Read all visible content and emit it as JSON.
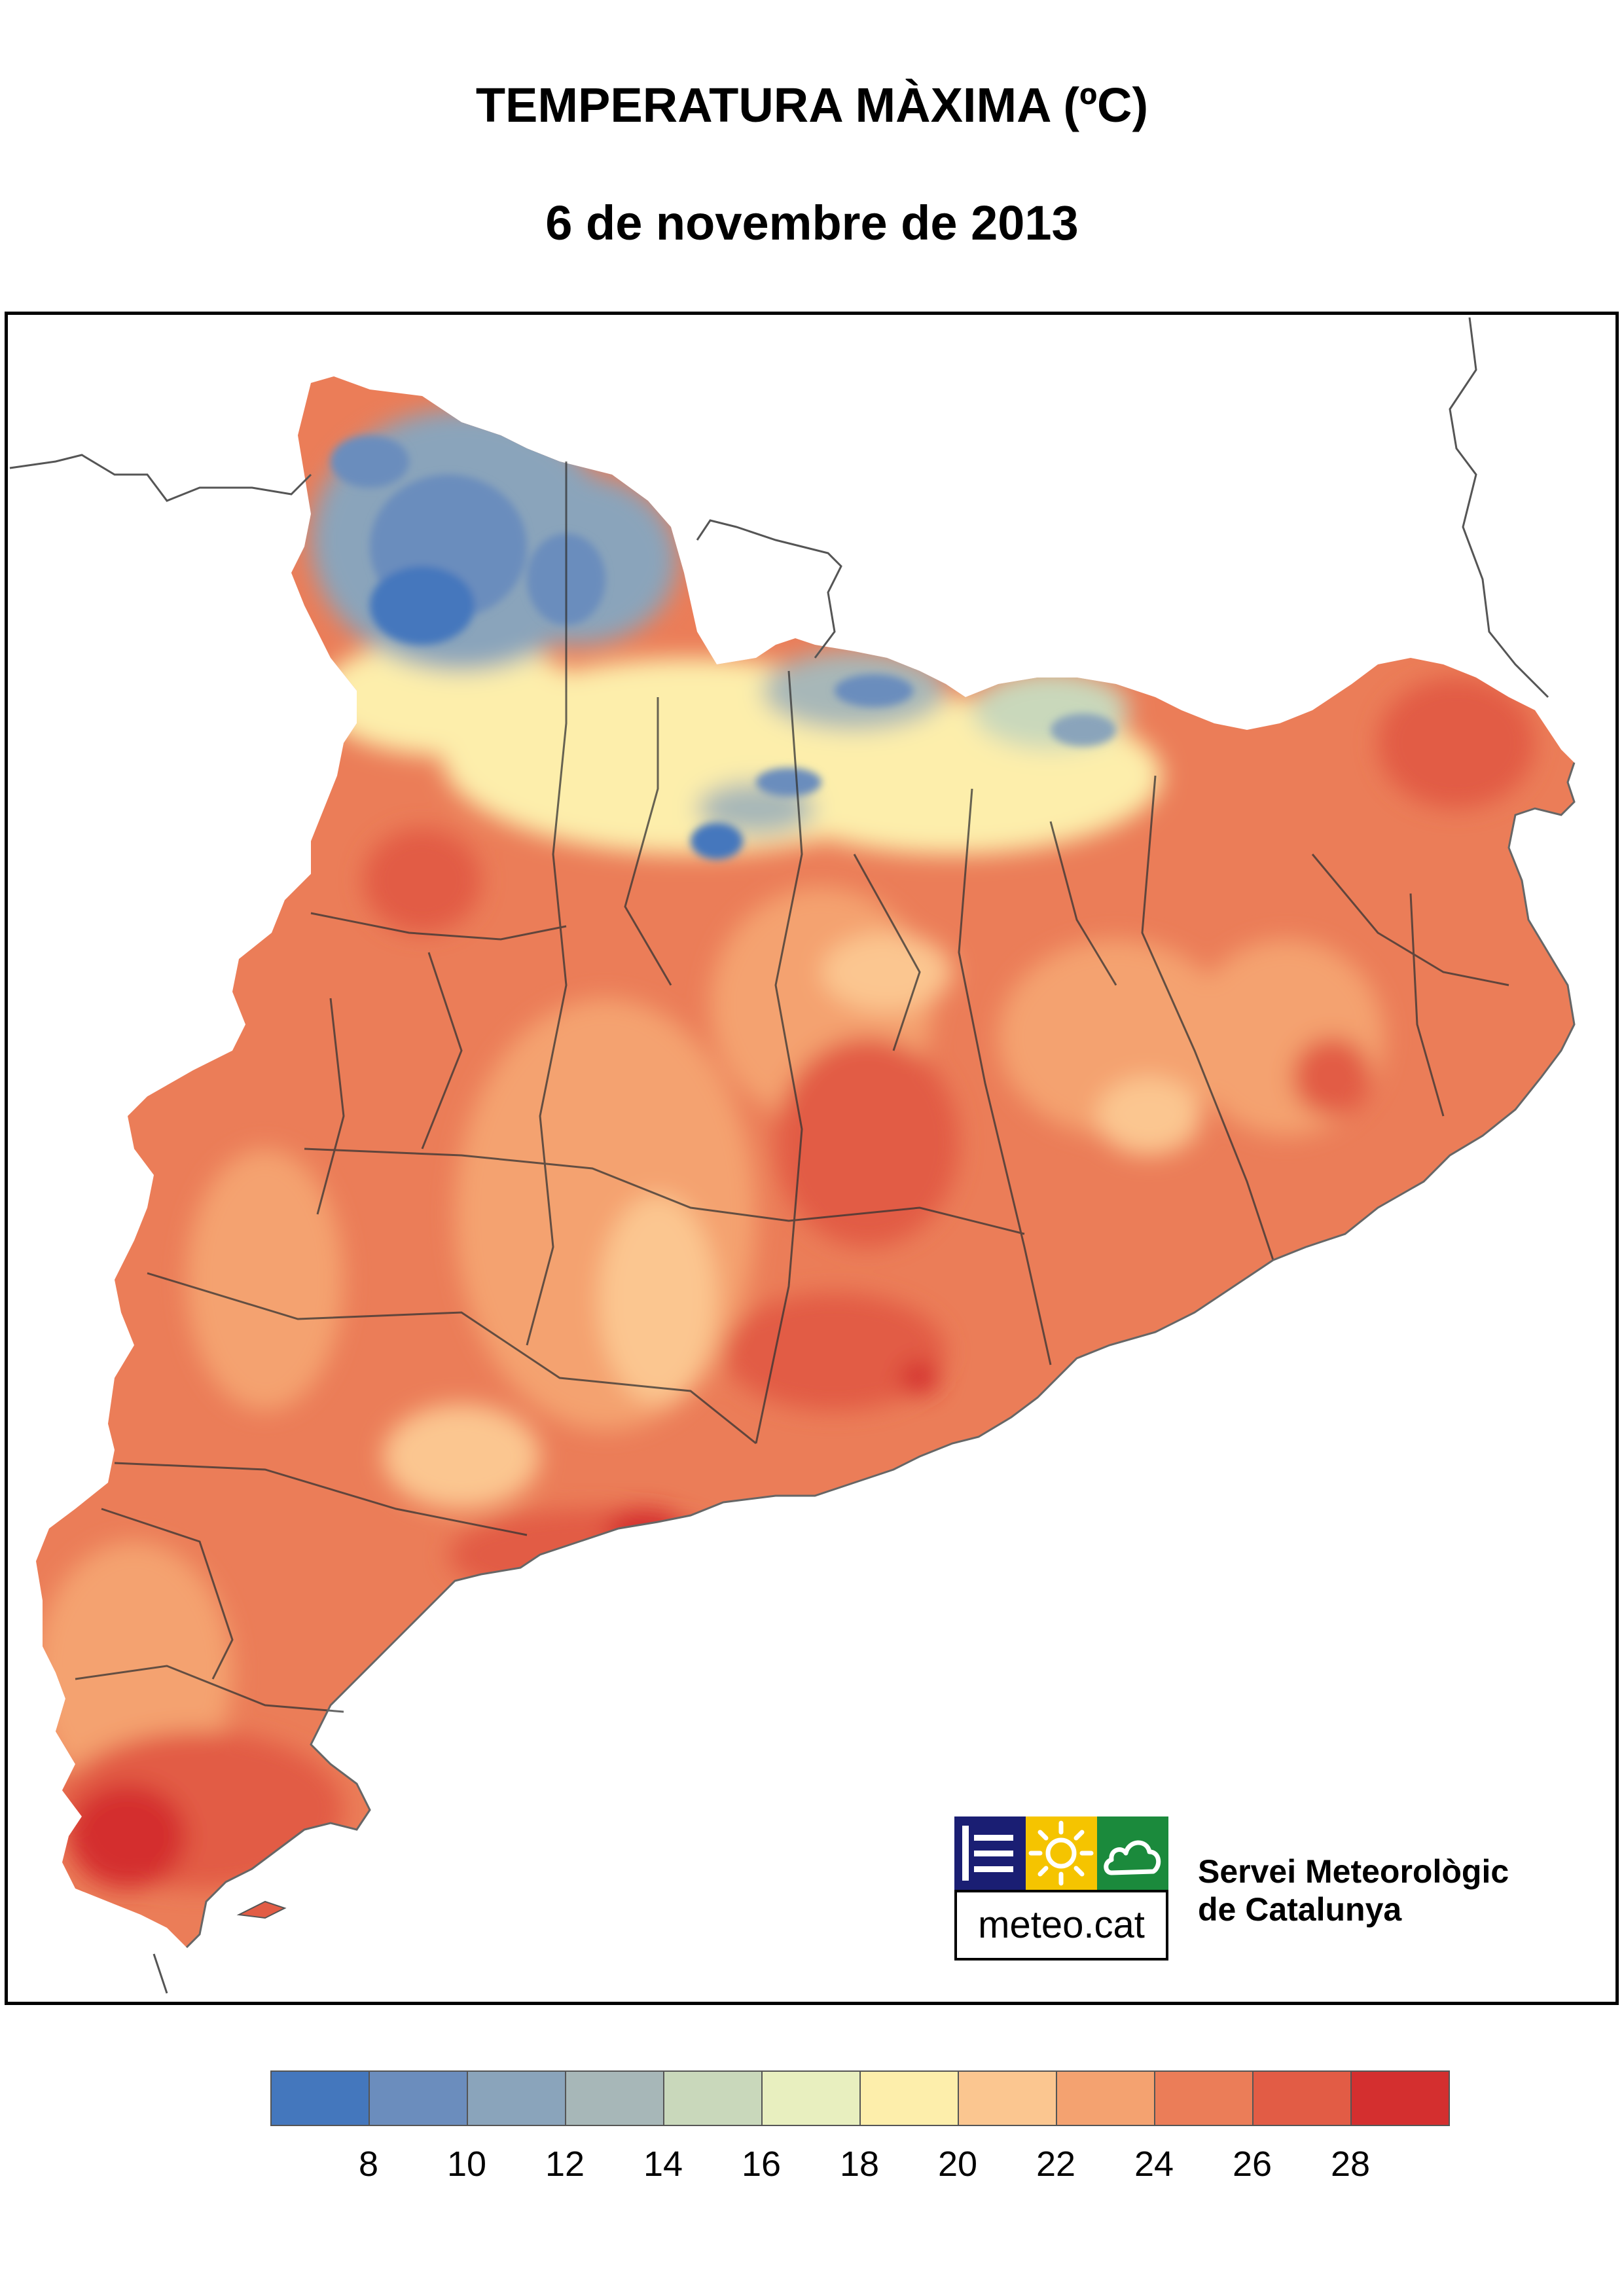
{
  "title": "TEMPERATURA MÀXIMA (ºC)",
  "subtitle": "6 de novembre de 2013",
  "logo": {
    "text": "meteo.cat",
    "icons": [
      "waves-icon",
      "sun-icon",
      "cloud-icon"
    ],
    "colors": {
      "blue": "#1a1e73",
      "yellow": "#f5c400",
      "green": "#1b8a3c"
    }
  },
  "organization": {
    "line1": "Servei Meteorològic",
    "line2": "de Catalunya"
  },
  "legend": {
    "colors": [
      "#4477bd",
      "#6b8dbd",
      "#8aa4bb",
      "#a7b7b8",
      "#c9d8bb",
      "#e8efbf",
      "#fdeeab",
      "#fbc690",
      "#f4a270",
      "#eb7d58",
      "#e25c45",
      "#d42f2f"
    ],
    "tick_labels": [
      "8",
      "10",
      "12",
      "14",
      "16",
      "18",
      "20",
      "22",
      "24",
      "26",
      "28"
    ]
  }
}
